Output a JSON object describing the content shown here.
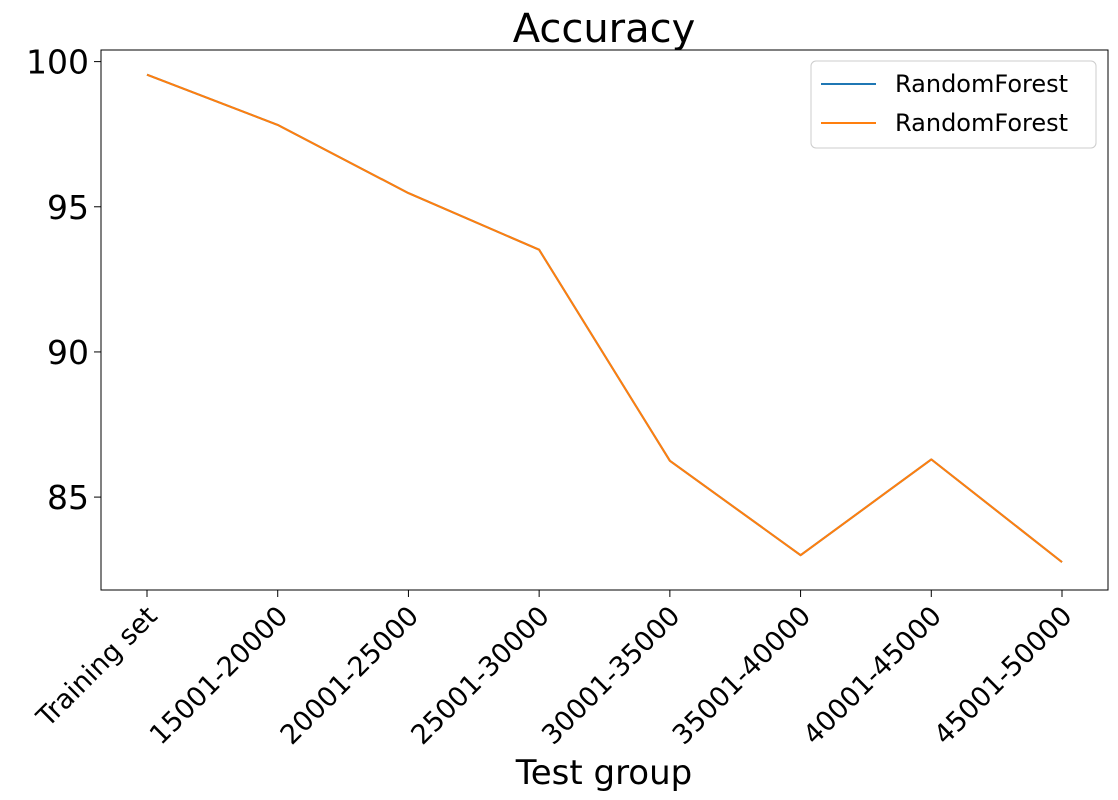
{
  "chart_data": {
    "type": "line",
    "title": "Accuracy",
    "xlabel": "Test group",
    "ylabel": "",
    "categories": [
      "Training set",
      "15001-20000",
      "20001-25000",
      "25001-30000",
      "30001-35000",
      "35001-40000",
      "40001-45000",
      "45001-50000"
    ],
    "yticks": [
      85,
      90,
      95,
      100
    ],
    "ylim": [
      81.8,
      100.4
    ],
    "grid": false,
    "legend_position": "top-right",
    "series": [
      {
        "name": "RandomForest",
        "color": "#1f77b4",
        "values": [
          99.55,
          97.82,
          95.47,
          93.52,
          86.25,
          83.0,
          86.3,
          82.76
        ]
      },
      {
        "name": "RandomForest",
        "color": "#ff7f0e",
        "values": [
          99.55,
          97.82,
          95.47,
          93.52,
          86.25,
          83.0,
          86.3,
          82.76
        ]
      }
    ]
  }
}
